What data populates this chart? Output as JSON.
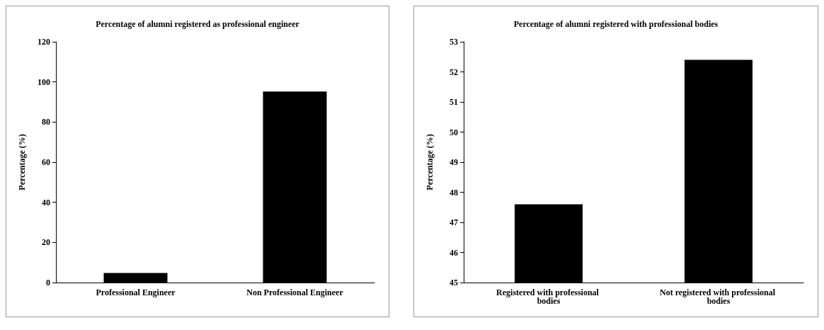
{
  "chart_data": [
    {
      "type": "bar",
      "title": "Percentage of alumni registered as professional engineer",
      "ylabel": "Percentage (%)",
      "categories": [
        "Professional Engineer",
        "Non Professional Engineer"
      ],
      "values": [
        4.8,
        95.2
      ],
      "color": "#000000",
      "ylim": [
        0,
        120
      ],
      "yticks": [
        0,
        20,
        40,
        60,
        80,
        100,
        120
      ],
      "grid": false
    },
    {
      "type": "bar",
      "title": "Percentage of alumni registered with professional bodies",
      "ylabel": "Percentage (%)",
      "categories": [
        "Registered with professional bodies",
        "Not registered with professional bodies"
      ],
      "values": [
        47.6,
        52.4
      ],
      "color": "#000000",
      "ylim": [
        45,
        53
      ],
      "yticks": [
        45,
        46,
        47,
        48,
        49,
        50,
        51,
        52,
        53
      ],
      "grid": false
    }
  ]
}
